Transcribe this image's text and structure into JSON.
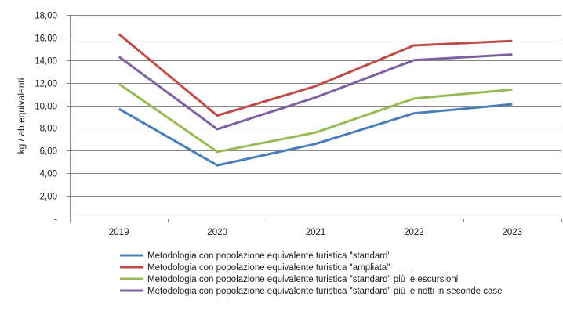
{
  "chart_data": {
    "type": "line",
    "categories": [
      "2019",
      "2020",
      "2021",
      "2022",
      "2023"
    ],
    "series": [
      {
        "name": "Metodologia con popolazione equivalente turistica \"standard\"",
        "color": "#4a7ebb",
        "values": [
          9.7,
          4.7,
          6.6,
          9.3,
          10.1
        ]
      },
      {
        "name": "Metodologia con popolazione equivalente turistica \"ampliata\"",
        "color": "#be4b48",
        "values": [
          16.3,
          9.1,
          11.7,
          15.3,
          15.7
        ]
      },
      {
        "name": "Metodologia con popolazione equivalente turistica \"standard\" più le escursioni",
        "color": "#98b954",
        "values": [
          11.9,
          5.9,
          7.6,
          10.6,
          11.4
        ]
      },
      {
        "name": "Metodologia con popolazione equivalente turistica \"standard\" più le notti in seconde case",
        "color": "#7d60a0",
        "values": [
          14.3,
          7.9,
          10.7,
          14.0,
          14.5
        ]
      }
    ],
    "ylabel": "kg / ab.equivalenti",
    "xlabel": "",
    "ylim": [
      0,
      18
    ],
    "yticks": [
      0,
      2,
      4,
      6,
      8,
      10,
      12,
      14,
      16,
      18
    ],
    "ytick_labels": [
      "-",
      "2,00",
      "4,00",
      "6,00",
      "8,00",
      "10,00",
      "12,00",
      "14,00",
      "16,00",
      "18,00"
    ],
    "grid": true,
    "legend_position": "bottom"
  }
}
